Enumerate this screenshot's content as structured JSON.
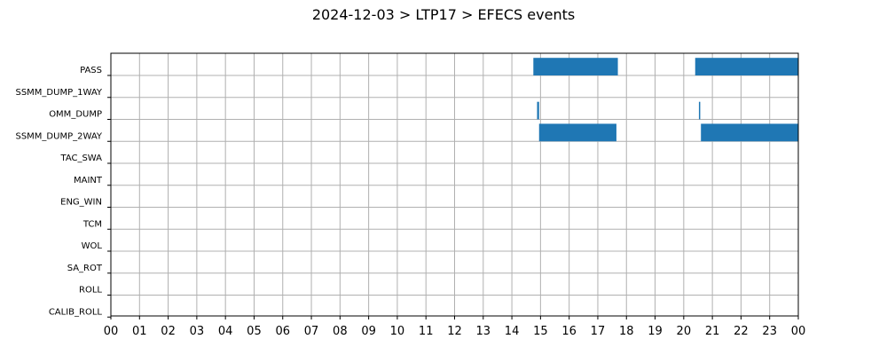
{
  "chart_data": {
    "type": "bar",
    "orientation": "horizontal-timeline",
    "title": "2024-12-03 > LTP17 > EFECS events",
    "xlabel": "",
    "ylabel": "",
    "xlim": [
      0,
      24
    ],
    "grid": true,
    "bar_color": "#1f77b4",
    "x_tick_labels": [
      "00",
      "01",
      "02",
      "03",
      "04",
      "05",
      "06",
      "07",
      "08",
      "09",
      "10",
      "11",
      "12",
      "13",
      "14",
      "15",
      "16",
      "17",
      "18",
      "19",
      "20",
      "21",
      "22",
      "23",
      "00"
    ],
    "categories": [
      "PASS",
      "SSMM_DUMP_1WAY",
      "OMM_DUMP",
      "SSMM_DUMP_2WAY",
      "TAC_SWA",
      "MAINT",
      "ENG_WIN",
      "TCM",
      "WOL",
      "SA_ROT",
      "ROLL",
      "CALIB_ROLL"
    ],
    "events": [
      {
        "category": "PASS",
        "start": 14.75,
        "end": 17.7
      },
      {
        "category": "PASS",
        "start": 20.4,
        "end": 24.0
      },
      {
        "category": "OMM_DUMP",
        "start": 14.88,
        "end": 14.95
      },
      {
        "category": "OMM_DUMP",
        "start": 20.53,
        "end": 20.57
      },
      {
        "category": "SSMM_DUMP_2WAY",
        "start": 14.95,
        "end": 17.65
      },
      {
        "category": "SSMM_DUMP_2WAY",
        "start": 20.6,
        "end": 24.0
      }
    ]
  }
}
